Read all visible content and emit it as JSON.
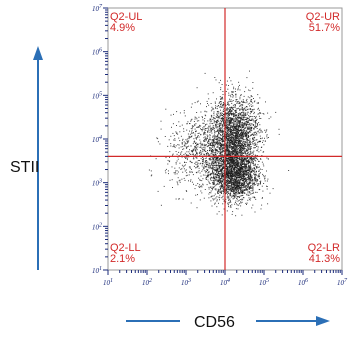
{
  "chart_data": {
    "type": "scatter",
    "title": "",
    "xlabel": "CD56",
    "ylabel": "STII",
    "x_scale": "log",
    "y_scale": "log",
    "xlim": [
      10,
      10000000
    ],
    "ylim": [
      10,
      10000000
    ],
    "x_ticks": [
      "10^1",
      "10^2",
      "10^3",
      "10^4",
      "10^5",
      "10^6",
      "10^7"
    ],
    "y_ticks": [
      "10^1",
      "10^2",
      "10^3",
      "10^4",
      "10^5",
      "10^6",
      "10^7"
    ],
    "gate": {
      "x": 10000,
      "y": 4000
    },
    "quadrants": [
      {
        "name": "Q2-UL",
        "percent": "4.9%"
      },
      {
        "name": "Q2-UR",
        "percent": "51.7%"
      },
      {
        "name": "Q2-LL",
        "percent": "2.1%"
      },
      {
        "name": "Q2-LR",
        "percent": "41.3%"
      }
    ],
    "populations": [
      {
        "center_x": 17000,
        "center_y": 12000,
        "spread_x_decades": 0.32,
        "spread_y_decades": 0.45,
        "weight": 0.45
      },
      {
        "center_x": 17000,
        "center_y": 1500,
        "spread_x_decades": 0.3,
        "spread_y_decades": 0.3,
        "weight": 0.38
      },
      {
        "center_x": 3000,
        "center_y": 5000,
        "spread_x_decades": 0.5,
        "spread_y_decades": 0.45,
        "weight": 0.17
      }
    ],
    "colors": {
      "gate_line": "#d22a2a",
      "points": "#1a1a1a",
      "axis_arrow": "#2b6fb6",
      "tick_text": "#1a2a7a"
    }
  }
}
